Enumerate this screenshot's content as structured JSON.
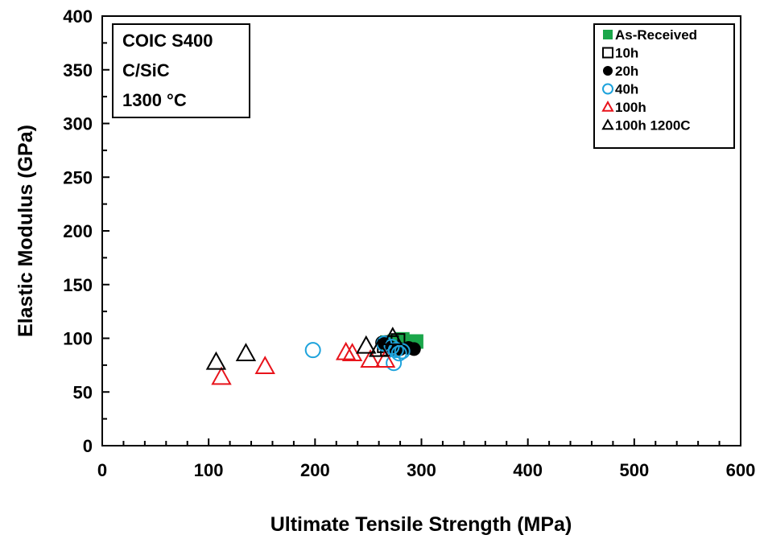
{
  "chart_data": {
    "type": "scatter",
    "xlabel": "Ultimate Tensile Strength (MPa)",
    "ylabel": "Elastic Modulus (GPa)",
    "xlim": [
      0,
      600
    ],
    "ylim": [
      0,
      400
    ],
    "xticks": [
      0,
      100,
      200,
      300,
      400,
      500,
      600
    ],
    "yticks": [
      0,
      50,
      100,
      150,
      200,
      250,
      300,
      350,
      400
    ],
    "grid": false,
    "legend_position": "top-right",
    "info_box": [
      "COIC S400",
      "C/SiC",
      "1300 °C"
    ],
    "series": [
      {
        "name": "As-Received",
        "marker": "square-filled",
        "color": "#1aa64a",
        "points": [
          [
            268,
            96
          ],
          [
            275,
            97
          ],
          [
            282,
            99
          ],
          [
            290,
            94
          ],
          [
            295,
            97
          ],
          [
            285,
            92
          ]
        ]
      },
      {
        "name": "10h",
        "marker": "square-open",
        "color": "#000000",
        "points": [
          [
            265,
            93
          ],
          [
            272,
            96
          ],
          [
            278,
            98
          ],
          [
            268,
            90
          ]
        ]
      },
      {
        "name": "20h",
        "marker": "circle-filled",
        "color": "#000000",
        "points": [
          [
            263,
            96
          ],
          [
            270,
            92
          ],
          [
            280,
            90
          ],
          [
            288,
            91
          ],
          [
            293,
            90
          ]
        ]
      },
      {
        "name": "40h",
        "marker": "circle-open",
        "color": "#1ea3dc",
        "points": [
          [
            198,
            89
          ],
          [
            265,
            95
          ],
          [
            272,
            92
          ],
          [
            276,
            89
          ],
          [
            279,
            86
          ],
          [
            274,
            77
          ],
          [
            282,
            88
          ]
        ]
      },
      {
        "name": "100h",
        "marker": "triangle-open",
        "color": "#e8131b",
        "points": [
          [
            112,
            64
          ],
          [
            153,
            74
          ],
          [
            229,
            87
          ],
          [
            235,
            86
          ],
          [
            252,
            80
          ],
          [
            266,
            80
          ]
        ]
      },
      {
        "name": "100h 1200C",
        "marker": "triangle-open",
        "color": "#000000",
        "points": [
          [
            107,
            78
          ],
          [
            135,
            86
          ],
          [
            248,
            93
          ],
          [
            260,
            90
          ],
          [
            273,
            101
          ]
        ]
      }
    ]
  }
}
